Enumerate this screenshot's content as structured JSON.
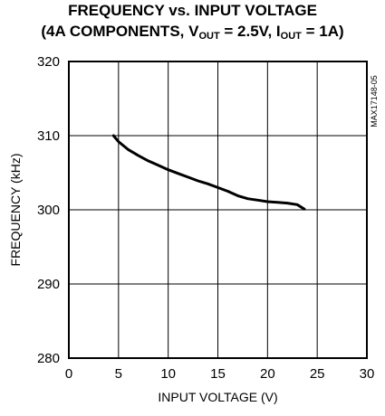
{
  "chart_data": {
    "type": "line",
    "title": {
      "line1": "FREQUENCY vs. INPUT VOLTAGE",
      "line2_prefix": "(4A COMPONENTS, V",
      "line2_sub1": "OUT",
      "line2_mid": " = 2.5V, I",
      "line2_sub2": "OUT",
      "line2_suffix": " = 1A)"
    },
    "xlabel": "INPUT VOLTAGE (V)",
    "ylabel": "FREQUENCY (kHz)",
    "xlim": [
      0,
      30
    ],
    "ylim": [
      280,
      320
    ],
    "xticks": [
      "0",
      "5",
      "10",
      "15",
      "20",
      "25",
      "30"
    ],
    "yticks": [
      "280",
      "290",
      "300",
      "310",
      "320"
    ],
    "grid": true,
    "side_code": "MAX17148-05",
    "series": [
      {
        "color": "#000000",
        "x": [
          4.5,
          5.0,
          6.0,
          7.0,
          8.0,
          9.0,
          10.0,
          11.0,
          12.0,
          13.0,
          14.0,
          15.0,
          16.0,
          17.0,
          18.0,
          19.0,
          20.0,
          21.0,
          22.0,
          23.0,
          23.7
        ],
        "y": [
          310.0,
          309.2,
          308.1,
          307.3,
          306.6,
          306.0,
          305.4,
          304.9,
          304.4,
          303.9,
          303.5,
          303.0,
          302.5,
          301.9,
          301.5,
          301.3,
          301.1,
          301.0,
          300.9,
          300.7,
          300.1
        ]
      }
    ]
  }
}
